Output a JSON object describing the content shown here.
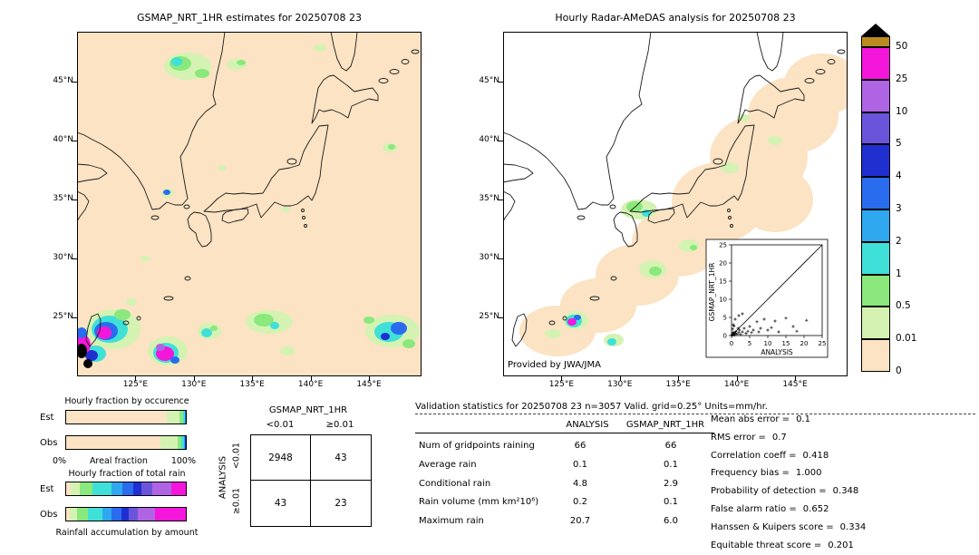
{
  "titles": {
    "left_map": "GSMAP_NRT_1HR estimates for 20250708 23",
    "right_map": "Hourly Radar-AMeDAS analysis for 20250708 23"
  },
  "credit": "Provided by JWA/JMA",
  "colorbar": {
    "tick_labels": [
      "50",
      "25",
      "10",
      "5",
      "4",
      "3",
      "2",
      "1",
      "0.5",
      "0.01",
      "0"
    ],
    "box_colors": [
      "#bb8a20",
      "#f516dc",
      "#af64e4",
      "#6a55da",
      "#1f2fd0",
      "#2a6cee",
      "#2fa8f0",
      "#3fe0d8",
      "#8ae87c",
      "#d4f3b3",
      "#fbe3c3"
    ],
    "over_color": "#000000"
  },
  "map_geo": {
    "lat_ticks": [
      {
        "value": 45,
        "label": "45°N"
      },
      {
        "value": 40,
        "label": "40°N"
      },
      {
        "value": 35,
        "label": "35°N"
      },
      {
        "value": 30,
        "label": "30°N"
      },
      {
        "value": 25,
        "label": "25°N"
      }
    ],
    "lon_ticks": [
      {
        "value": 125,
        "label": "125°E"
      },
      {
        "value": 130,
        "label": "130°E"
      },
      {
        "value": 135,
        "label": "135°E"
      },
      {
        "value": 140,
        "label": "140°E"
      },
      {
        "value": 145,
        "label": "145°E"
      }
    ]
  },
  "maps": {
    "background_left": "#fbe3c3",
    "background_right": "#ffffff",
    "left_blobs": [
      [
        122,
        38,
        26,
        15,
        "#d4f3b3"
      ],
      [
        114,
        35,
        12,
        8,
        "#8ae87c"
      ],
      [
        110,
        33,
        6,
        5,
        "#3fe0d8"
      ],
      [
        138,
        46,
        8,
        5,
        "#8ae87c"
      ],
      [
        176,
        36,
        11,
        6,
        "#d4f3b3"
      ],
      [
        181,
        34,
        5,
        3,
        "#8ae87c"
      ],
      [
        268,
        18,
        7,
        4,
        "#d4f3b3"
      ],
      [
        345,
        128,
        8,
        5,
        "#d4f3b3"
      ],
      [
        347,
        127,
        4,
        3,
        "#8ae87c"
      ],
      [
        100,
        178,
        7,
        5,
        "#d4f3b3"
      ],
      [
        99,
        177,
        4,
        3,
        "#2a6cee"
      ],
      [
        160,
        150,
        5,
        3,
        "#d4f3b3"
      ],
      [
        230,
        196,
        5,
        3,
        "#d4f3b3"
      ],
      [
        40,
        328,
        30,
        22,
        "#d4f3b3"
      ],
      [
        36,
        328,
        20,
        15,
        "#3fe0d8"
      ],
      [
        32,
        330,
        13,
        10,
        "#2a6cee"
      ],
      [
        30,
        332,
        8,
        7,
        "#f516dc"
      ],
      [
        50,
        312,
        9,
        6,
        "#8ae87c"
      ],
      [
        20,
        355,
        12,
        9,
        "#3fe0d8"
      ],
      [
        16,
        357,
        7,
        6,
        "#1f2fd0"
      ],
      [
        6,
        345,
        9,
        11,
        "#f516dc"
      ],
      [
        5,
        332,
        6,
        6,
        "#2a6cee"
      ],
      [
        5,
        352,
        6,
        8,
        "#000000"
      ],
      [
        12,
        366,
        5,
        5,
        "#000000"
      ],
      [
        100,
        352,
        22,
        16,
        "#d4f3b3"
      ],
      [
        98,
        354,
        14,
        11,
        "#3fe0d8"
      ],
      [
        97,
        355,
        10,
        8,
        "#f516dc"
      ],
      [
        92,
        348,
        5,
        4,
        "#af64e4"
      ],
      [
        108,
        362,
        5,
        4,
        "#2a6cee"
      ],
      [
        146,
        330,
        13,
        9,
        "#d4f3b3"
      ],
      [
        143,
        332,
        6,
        5,
        "#3fe0d8"
      ],
      [
        151,
        327,
        4,
        3,
        "#8ae87c"
      ],
      [
        212,
        320,
        26,
        13,
        "#d4f3b3"
      ],
      [
        206,
        318,
        11,
        7,
        "#8ae87c"
      ],
      [
        218,
        324,
        5,
        4,
        "#3fe0d8"
      ],
      [
        232,
        352,
        8,
        5,
        "#d4f3b3"
      ],
      [
        348,
        330,
        30,
        18,
        "#d4f3b3"
      ],
      [
        344,
        331,
        16,
        11,
        "#3fe0d8"
      ],
      [
        355,
        327,
        9,
        7,
        "#2a6cee"
      ],
      [
        340,
        336,
        5,
        4,
        "#1f2fd0"
      ],
      [
        366,
        344,
        7,
        5,
        "#8ae87c"
      ],
      [
        322,
        318,
        6,
        4,
        "#8ae87c"
      ],
      [
        60,
        298,
        6,
        4,
        "#d4f3b3"
      ],
      [
        75,
        250,
        5,
        3,
        "#d4f3b3"
      ]
    ],
    "right_coverage": [
      [
        60,
        330,
        42,
        28
      ],
      [
        105,
        302,
        42,
        30
      ],
      [
        148,
        268,
        46,
        34
      ],
      [
        192,
        232,
        50,
        38
      ],
      [
        238,
        188,
        52,
        44
      ],
      [
        282,
        138,
        54,
        46
      ],
      [
        320,
        92,
        50,
        42
      ],
      [
        352,
        58,
        42,
        34
      ],
      [
        300,
        185,
        42,
        36
      ]
    ],
    "right_blobs": [
      [
        150,
        196,
        20,
        11,
        "#d4f3b3"
      ],
      [
        145,
        193,
        9,
        6,
        "#8ae87c"
      ],
      [
        158,
        200,
        5,
        4,
        "#3fe0d8"
      ],
      [
        165,
        262,
        15,
        10,
        "#d4f3b3"
      ],
      [
        168,
        264,
        7,
        5,
        "#8ae87c"
      ],
      [
        205,
        236,
        11,
        7,
        "#d4f3b3"
      ],
      [
        210,
        238,
        4,
        3,
        "#8ae87c"
      ],
      [
        80,
        318,
        14,
        10,
        "#d4f3b3"
      ],
      [
        78,
        319,
        9,
        7,
        "#3fe0d8"
      ],
      [
        76,
        320,
        5,
        4,
        "#f516dc"
      ],
      [
        82,
        315,
        4,
        3,
        "#2a6cee"
      ],
      [
        122,
        340,
        11,
        7,
        "#d4f3b3"
      ],
      [
        120,
        342,
        5,
        4,
        "#3fe0d8"
      ],
      [
        55,
        333,
        9,
        5,
        "#d4f3b3"
      ],
      [
        250,
        150,
        10,
        6,
        "#d4f3b3"
      ],
      [
        300,
        120,
        8,
        5,
        "#d4f3b3"
      ],
      [
        265,
        95,
        7,
        4,
        "#d4f3b3"
      ]
    ]
  },
  "chart_data": [
    {
      "type": "scatter",
      "xlabel": "ANALYSIS",
      "ylabel": "GSMAP_NRT_1HR",
      "xlim": [
        0,
        25
      ],
      "ylim": [
        0,
        25
      ],
      "ticks": [
        0,
        5,
        10,
        15,
        20,
        25
      ],
      "diagonal": true,
      "points": [
        [
          0.1,
          0.2
        ],
        [
          0.2,
          0.1
        ],
        [
          0.3,
          0.5
        ],
        [
          0.4,
          0.2
        ],
        [
          0.5,
          0.9
        ],
        [
          0.6,
          0.3
        ],
        [
          0.8,
          0.1
        ],
        [
          1,
          0.6
        ],
        [
          1.2,
          1.1
        ],
        [
          1.5,
          0.4
        ],
        [
          1.8,
          2
        ],
        [
          2,
          0.8
        ],
        [
          2.2,
          1.5
        ],
        [
          2.5,
          0.3
        ],
        [
          3,
          1
        ],
        [
          3,
          6
        ],
        [
          3.5,
          2
        ],
        [
          4,
          0.6
        ],
        [
          4.5,
          1.2
        ],
        [
          5,
          2.5
        ],
        [
          5.5,
          0.8
        ],
        [
          6,
          1.5
        ],
        [
          7,
          3.8
        ],
        [
          7.5,
          1
        ],
        [
          8,
          2
        ],
        [
          9,
          4.5
        ],
        [
          10,
          1.5
        ],
        [
          11,
          2.2
        ],
        [
          12,
          4
        ],
        [
          13,
          1
        ],
        [
          15,
          4.8
        ],
        [
          17,
          2.5
        ],
        [
          18,
          1.2
        ],
        [
          20.7,
          4.2
        ],
        [
          0.5,
          3
        ],
        [
          1,
          4.5
        ],
        [
          2,
          5.5
        ],
        [
          0.3,
          1.8
        ],
        [
          0.7,
          2.6
        ]
      ]
    },
    {
      "type": "bar",
      "variant": "stacked-horizontal",
      "title": "Hourly fraction by occurence",
      "axis_left": "0%",
      "axis_center": "Areal fraction",
      "axis_right": "100%",
      "rows": [
        {
          "label": "Est",
          "segments": [
            [
              "#fbe3c3",
              84
            ],
            [
              "#d4f3b3",
              11
            ],
            [
              "#8ae87c",
              2.5
            ],
            [
              "#3fe0d8",
              1.5
            ],
            [
              "#2a6cee",
              1
            ]
          ]
        },
        {
          "label": "Obs",
          "segments": [
            [
              "#fbe3c3",
              79
            ],
            [
              "#d4f3b3",
              14
            ],
            [
              "#8ae87c",
              3.5
            ],
            [
              "#3fe0d8",
              2
            ],
            [
              "#2fa8f0",
              1
            ],
            [
              "#1f2fd0",
              0.5
            ]
          ]
        }
      ]
    },
    {
      "type": "bar",
      "variant": "stacked-horizontal",
      "title": "Hourly fraction of total rain",
      "caption": "Rainfall accumulation by amount",
      "rows": [
        {
          "label": "Est",
          "segments": [
            [
              "#fbe3c3",
              4
            ],
            [
              "#d4f3b3",
              7
            ],
            [
              "#8ae87c",
              11
            ],
            [
              "#3fe0d8",
              16
            ],
            [
              "#2fa8f0",
              9
            ],
            [
              "#2a6cee",
              9
            ],
            [
              "#1f2fd0",
              7
            ],
            [
              "#6a55da",
              9
            ],
            [
              "#af64e4",
              16
            ],
            [
              "#f516dc",
              12
            ]
          ]
        },
        {
          "label": "Obs",
          "segments": [
            [
              "#fbe3c3",
              3
            ],
            [
              "#d4f3b3",
              6
            ],
            [
              "#8ae87c",
              9
            ],
            [
              "#3fe0d8",
              12
            ],
            [
              "#2fa8f0",
              8
            ],
            [
              "#2a6cee",
              8
            ],
            [
              "#1f2fd0",
              6
            ],
            [
              "#6a55da",
              8
            ],
            [
              "#af64e4",
              14
            ],
            [
              "#f516dc",
              26
            ]
          ]
        }
      ]
    },
    {
      "type": "table",
      "title": "GSMAP_NRT_1HR",
      "side_title": "ANALYSIS",
      "col_labels": [
        "<0.01",
        "≥0.01"
      ],
      "row_labels": [
        "<0.01",
        "≥0.01"
      ],
      "values": [
        [
          "2948",
          "43"
        ],
        [
          "43",
          "23"
        ]
      ]
    }
  ],
  "stats": {
    "header": "Validation statistics for 20250708 23  n=3057 Valid. grid=0.25° Units=mm/hr.",
    "col1": "ANALYSIS",
    "col2": "GSMAP_NRT_1HR",
    "rows": [
      {
        "label": "Num of gridpoints raining",
        "a": "66",
        "g": "66"
      },
      {
        "label": "Average rain",
        "a": "0.1",
        "g": "0.1"
      },
      {
        "label": "Conditional rain",
        "a": "4.8",
        "g": "2.9"
      },
      {
        "label": "Rain volume (mm km²10⁶)",
        "a": "0.2",
        "g": "0.1"
      },
      {
        "label": "Maximum rain",
        "a": "20.7",
        "g": "6.0"
      }
    ],
    "scores": [
      {
        "label": "Mean abs error =",
        "value": "0.1"
      },
      {
        "label": "RMS error =",
        "value": "0.7"
      },
      {
        "label": "Correlation coeff =",
        "value": "0.418"
      },
      {
        "label": "Frequency bias =",
        "value": "1.000"
      },
      {
        "label": "Probability of detection =",
        "value": "0.348"
      },
      {
        "label": "False alarm ratio =",
        "value": "0.652"
      },
      {
        "label": "Hanssen & Kuipers score =",
        "value": "0.334"
      },
      {
        "label": "Equitable threat score =",
        "value": "0.201"
      }
    ]
  }
}
